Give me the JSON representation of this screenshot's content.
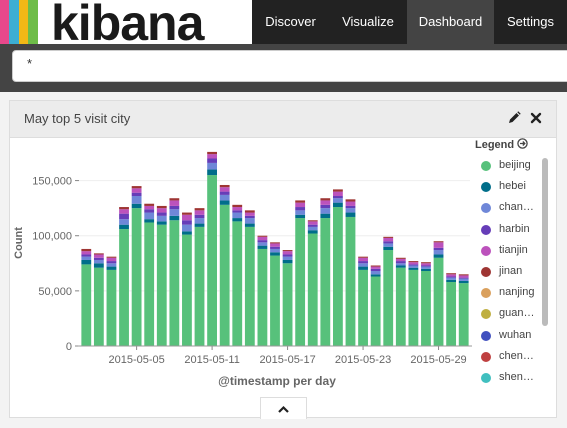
{
  "logo": {
    "text": "kibana",
    "bar_colors": [
      "#e8488b",
      "#3caed2",
      "#f2b816",
      "#6ebd48",
      "#ffffff"
    ]
  },
  "nav": {
    "items": [
      {
        "label": "Discover",
        "active": false
      },
      {
        "label": "Visualize",
        "active": false
      },
      {
        "label": "Dashboard",
        "active": true
      },
      {
        "label": "Settings",
        "active": false
      }
    ]
  },
  "search": {
    "value": "*"
  },
  "panel": {
    "title": "May top 5 visit city",
    "edit_icon": "pencil-icon",
    "close_icon": "close-icon"
  },
  "legend": {
    "title": "Legend",
    "toggle_icon": "arrow-circle-icon",
    "items": [
      {
        "label": "beijing",
        "color": "#57c17b"
      },
      {
        "label": "hebei",
        "color": "#006e8a"
      },
      {
        "label": "chan…",
        "color": "#6f87d8"
      },
      {
        "label": "harbin",
        "color": "#663db8"
      },
      {
        "label": "tianjin",
        "color": "#bc52bc"
      },
      {
        "label": "jinan",
        "color": "#9e3533"
      },
      {
        "label": "nanjing",
        "color": "#daa05d"
      },
      {
        "label": "guan…",
        "color": "#bfaf40"
      },
      {
        "label": "wuhan",
        "color": "#4050bf"
      },
      {
        "label": "chen…",
        "color": "#bf4040"
      },
      {
        "label": "shen…",
        "color": "#40bfbf"
      }
    ]
  },
  "chart_data": {
    "type": "bar",
    "stacked": true,
    "xlabel": "@timestamp per day",
    "ylabel": "Count",
    "ylim": [
      0,
      175000
    ],
    "yticks": [
      0,
      50000,
      100000,
      150000
    ],
    "ytick_labels": [
      "0",
      "50,000",
      "100,000",
      "150,000"
    ],
    "xtick_labels": [
      "2015-05-05",
      "2015-05-11",
      "2015-05-17",
      "2015-05-23",
      "2015-05-29"
    ],
    "xtick_indices": [
      4,
      10,
      16,
      22,
      28
    ],
    "categories": [
      "2015-05-01",
      "2015-05-02",
      "2015-05-03",
      "2015-05-04",
      "2015-05-05",
      "2015-05-06",
      "2015-05-07",
      "2015-05-08",
      "2015-05-09",
      "2015-05-10",
      "2015-05-11",
      "2015-05-12",
      "2015-05-13",
      "2015-05-14",
      "2015-05-15",
      "2015-05-16",
      "2015-05-17",
      "2015-05-18",
      "2015-05-19",
      "2015-05-20",
      "2015-05-21",
      "2015-05-22",
      "2015-05-23",
      "2015-05-24",
      "2015-05-25",
      "2015-05-26",
      "2015-05-27",
      "2015-05-28",
      "2015-05-29",
      "2015-05-30",
      "2015-05-31"
    ],
    "series": [
      {
        "name": "beijing",
        "color": "#57c17b",
        "values": [
          74000,
          71000,
          69000,
          106000,
          125000,
          112000,
          110000,
          114000,
          101000,
          108000,
          155000,
          128000,
          113000,
          108000,
          88000,
          82000,
          75000,
          116000,
          102000,
          116000,
          126000,
          117000,
          69000,
          63000,
          87000,
          71000,
          69000,
          68000,
          80000,
          58000,
          57000
        ]
      },
      {
        "name": "hebei",
        "color": "#006e8a",
        "values": [
          4000,
          4000,
          3000,
          4000,
          4000,
          3000,
          3000,
          4000,
          3000,
          3000,
          5000,
          4000,
          3000,
          3000,
          3000,
          3000,
          3000,
          3000,
          3000,
          4000,
          4000,
          4000,
          3000,
          2000,
          3000,
          2000,
          2000,
          2000,
          3000,
          2000,
          2000
        ]
      },
      {
        "name": "chan…",
        "color": "#6f87d8",
        "values": [
          3000,
          3000,
          3000,
          5000,
          7000,
          6000,
          5000,
          6000,
          6000,
          5000,
          6000,
          5000,
          5000,
          5000,
          3000,
          3000,
          3000,
          4000,
          3000,
          5000,
          4000,
          4000,
          3000,
          3000,
          3000,
          2000,
          2000,
          2000,
          4000,
          2000,
          2000
        ]
      },
      {
        "name": "harbin",
        "color": "#663db8",
        "values": [
          2000,
          2000,
          2000,
          5000,
          3000,
          3000,
          3000,
          3000,
          4000,
          3000,
          4000,
          3000,
          2000,
          2000,
          2000,
          2000,
          2000,
          3000,
          2000,
          3000,
          2000,
          2000,
          2000,
          2000,
          2000,
          2000,
          1000,
          1000,
          2000,
          1000,
          1000
        ]
      },
      {
        "name": "tianjin",
        "color": "#bc52bc",
        "values": [
          3000,
          3000,
          3000,
          4000,
          4000,
          3000,
          4000,
          5000,
          5000,
          4000,
          4000,
          4000,
          3000,
          3000,
          3000,
          3000,
          3000,
          4000,
          3000,
          4000,
          4000,
          4000,
          3000,
          2000,
          3000,
          2000,
          2000,
          2000,
          5000,
          2000,
          2000
        ]
      },
      {
        "name": "jinan",
        "color": "#9e3533",
        "values": [
          2000,
          1000,
          1000,
          2000,
          2000,
          2000,
          2000,
          2000,
          2000,
          2000,
          2000,
          2000,
          2000,
          2000,
          1000,
          1000,
          1000,
          2000,
          1000,
          2000,
          2000,
          2000,
          1000,
          1000,
          1000,
          1000,
          1000,
          1000,
          1000,
          1000,
          1000
        ]
      }
    ]
  }
}
